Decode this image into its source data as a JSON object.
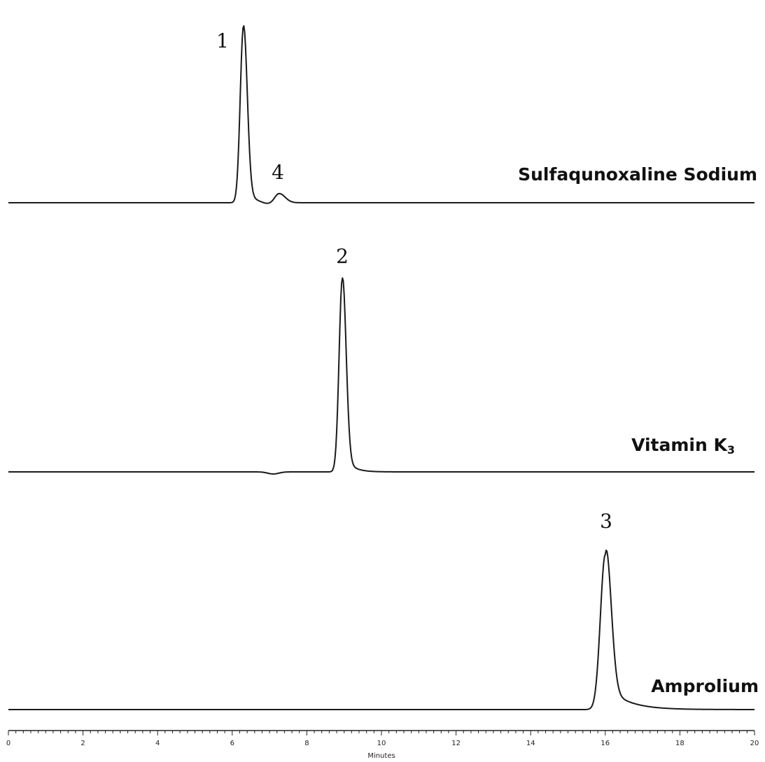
{
  "chart_data": {
    "type": "line",
    "title": "",
    "xlabel": "Minutes",
    "ylabel": "",
    "xlim": [
      0,
      20
    ],
    "x_ticks": [
      "0",
      "2",
      "4",
      "6",
      "8",
      "10",
      "12",
      "14",
      "16",
      "18",
      "20"
    ],
    "grid": false,
    "series": [
      {
        "name": "Sulfaqunoxaline Sodium",
        "baseline_min": 0,
        "peaks": [
          {
            "label": "1",
            "x": 6.3,
            "height": 1.0
          },
          {
            "label": "4",
            "x": 7.25,
            "height": 0.06
          }
        ]
      },
      {
        "name": "Vitamin K3",
        "peaks": [
          {
            "label": "2",
            "x": 8.95,
            "height": 1.0
          }
        ]
      },
      {
        "name": "Amprolium",
        "peaks": [
          {
            "label": "3",
            "x": 16.0,
            "height": 1.0
          }
        ]
      }
    ]
  }
}
